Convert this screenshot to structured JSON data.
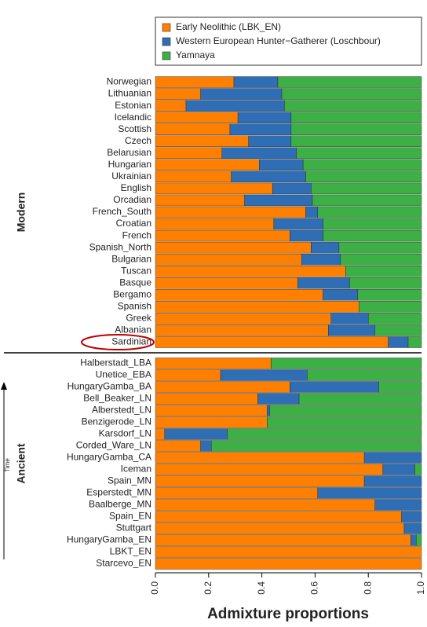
{
  "chart_data": {
    "type": "stacked_barh",
    "xlabel": "Admixture proportions",
    "time_label": "Time",
    "xlim": [
      0,
      1
    ],
    "xticks": [
      {
        "value": 0,
        "label": "0.0"
      },
      0.2,
      0.4,
      0.6,
      0.8,
      {
        "value": 1,
        "label": "1.0"
      }
    ],
    "legend": "top",
    "series": [
      {
        "name": "Early Neolithic (LBK_EN)",
        "color": "#ff7f00"
      },
      {
        "name": "Western European Hunter−Gatherer (Loschbour)",
        "color": "#2f6eb5"
      },
      {
        "name": "Yamnaya",
        "color": "#3cb044"
      }
    ],
    "highlight": "Sardinian",
    "groups": [
      {
        "name": "Modern",
        "categories": [
          "Norwegian",
          "Lithuanian",
          "Estonian",
          "Icelandic",
          "Scottish",
          "Czech",
          "Belarusian",
          "Hungarian",
          "Ukrainian",
          "English",
          "Orcadian",
          "French_South",
          "Croatian",
          "French",
          "Spanish_North",
          "Bulgarian",
          "Tuscan",
          "Basque",
          "Bergamo",
          "Spanish",
          "Greek",
          "Albanian",
          "Sardinian"
        ],
        "values": [
          [
            0.295,
            0.17,
            0.115,
            0.31,
            0.28,
            0.35,
            0.25,
            0.39,
            0.285,
            0.44,
            0.335,
            0.565,
            0.445,
            0.505,
            0.585,
            0.55,
            0.715,
            0.535,
            0.63,
            0.765,
            0.66,
            0.65,
            0.875
          ],
          [
            0.165,
            0.305,
            0.37,
            0.2,
            0.23,
            0.16,
            0.28,
            0.165,
            0.28,
            0.145,
            0.255,
            0.045,
            0.185,
            0.125,
            0.105,
            0.145,
            0,
            0.195,
            0.13,
            0,
            0.14,
            0.175,
            0.075
          ],
          [
            0.54,
            0.525,
            0.515,
            0.49,
            0.49,
            0.49,
            0.47,
            0.445,
            0.435,
            0.415,
            0.41,
            0.39,
            0.37,
            0.37,
            0.31,
            0.305,
            0.285,
            0.27,
            0.24,
            0.235,
            0.2,
            0.175,
            0.05
          ]
        ]
      },
      {
        "name": "Ancient",
        "categories": [
          "Halberstadt_LBA",
          "Unetice_EBA",
          "HungaryGamba_BA",
          "Bell_Beaker_LN",
          "Alberstedt_LN",
          "Benzigerode_LN",
          "Karsdorf_LN",
          "Corded_Ware_LN",
          "HungaryGamba_CA",
          "Iceman",
          "Spain_MN",
          "Esperstedt_MN",
          "Baalberge_MN",
          "Spain_EN",
          "Stuttgart",
          "HungaryGamba_EN",
          "LBKT_EN",
          "Starcevo_EN"
        ],
        "values": [
          [
            0.435,
            0.245,
            0.505,
            0.385,
            0.42,
            0.42,
            0.035,
            0.17,
            0.785,
            0.855,
            0.785,
            0.61,
            0.825,
            0.925,
            0.935,
            0.96,
            1,
            1
          ],
          [
            0,
            0.325,
            0.335,
            0.155,
            0.01,
            0,
            0.235,
            0.04,
            0.215,
            0.12,
            0.215,
            0.39,
            0.175,
            0.075,
            0.065,
            0.02,
            0,
            0
          ],
          [
            0.565,
            0.43,
            0.16,
            0.46,
            0.57,
            0.58,
            0.73,
            0.79,
            0,
            0.025,
            0,
            0,
            0,
            0,
            0,
            0.02,
            0,
            0
          ]
        ]
      }
    ]
  }
}
